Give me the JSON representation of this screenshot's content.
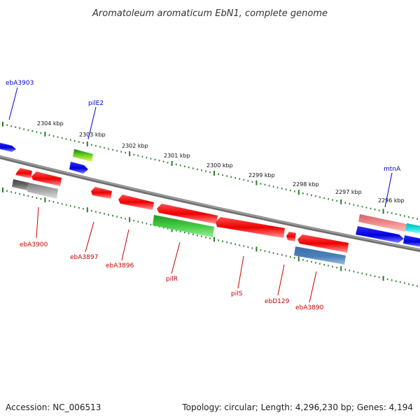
{
  "title": "Aromatoleum aromaticum EbN1, complete genome",
  "footer": {
    "accession": "Accession: NC_006513",
    "summary": "Topology: circular; Length: 4,296,230 bp; Genes: 4,194"
  },
  "scale_labels": [
    "2304 kbp",
    "2303 kbp",
    "2302 kbp",
    "2301 kbp",
    "2300 kbp",
    "2299 kbp",
    "2298 kbp",
    "2297 kbp",
    "2296 kbp"
  ],
  "gene_labels": {
    "top": [
      "ebA3903",
      "pilE2",
      "mtnA"
    ],
    "bottom": [
      "ebA3900",
      "ebA3897",
      "ebA3896",
      "pilR",
      "pilS",
      "ebD129",
      "ebA3890"
    ]
  },
  "colors": {
    "top_label": "#0000cc",
    "bottom_label": "#cc0000",
    "tick": "#2a7a2a",
    "backbone": "#808080"
  }
}
